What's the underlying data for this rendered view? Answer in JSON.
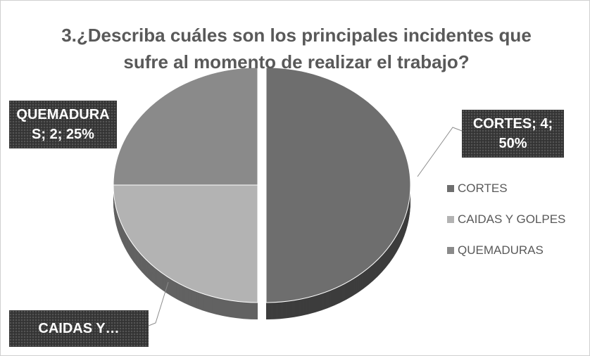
{
  "chart_data": {
    "type": "pie",
    "title": "3.¿Describa cuáles son los principales incidentes que sufre al momento de realizar el trabajo?",
    "categories": [
      "CORTES",
      "CAIDAS Y GOLPES",
      "QUEMADURAS"
    ],
    "values": [
      4,
      2,
      2
    ],
    "value_labels": [
      "CORTES; 4; 50%",
      "CAIDAS Y…",
      "QUEMADURAS; 2; 25%"
    ],
    "colors": [
      "#6e6e6e",
      "#b3b3b3",
      "#8a8a8a"
    ],
    "legend": "right"
  }
}
